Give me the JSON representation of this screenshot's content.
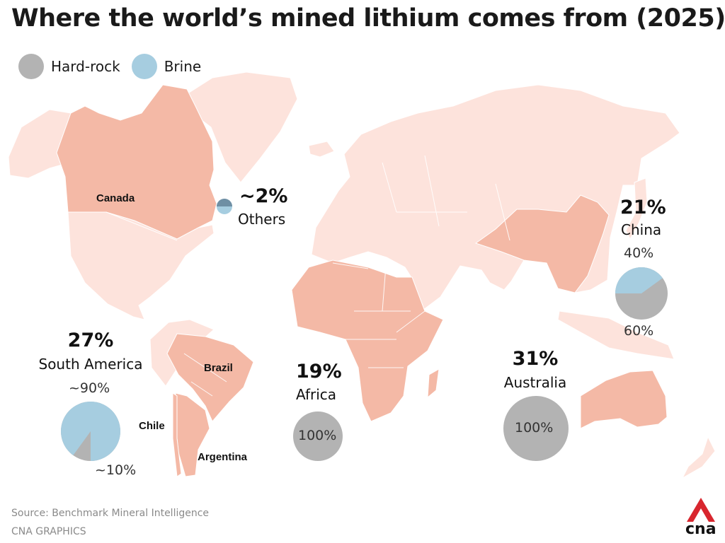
{
  "title": "Where the world’s mined lithium comes from (2025)",
  "legend": [
    {
      "label": "Hard-rock",
      "color": "#b3b3b3"
    },
    {
      "label": "Brine",
      "color": "#a6cde0"
    }
  ],
  "colors": {
    "land": "#fde3dc",
    "producer": "#f4b9a6",
    "border": "#ffffff",
    "hard_rock": "#b3b3b3",
    "brine": "#a6cde0",
    "others_dark": "#6f8fa4",
    "brand_red": "#d8262e"
  },
  "regions": {
    "others": {
      "share": "~2%",
      "name": "Others"
    },
    "china": {
      "share": "21%",
      "name": "China",
      "brine_label": "40%",
      "hard_rock_label": "60%",
      "brine_fraction": 0.4
    },
    "south_america": {
      "share": "27%",
      "name": "South America",
      "brine_label": "~90%",
      "hard_rock_label": "~10%",
      "brine_fraction": 0.9
    },
    "africa": {
      "share": "19%",
      "name": "Africa",
      "hard_rock_label": "100%",
      "brine_fraction": 0
    },
    "australia": {
      "share": "31%",
      "name": "Australia",
      "hard_rock_label": "100%",
      "brine_fraction": 0
    }
  },
  "countries": {
    "canada": "Canada",
    "brazil": "Brazil",
    "chile": "Chile",
    "argentina": "Argentina"
  },
  "footer": {
    "source": "Source: Benchmark Mineral Intelligence",
    "credit": "CNA GRAPHICS",
    "logo_text": "cna"
  }
}
